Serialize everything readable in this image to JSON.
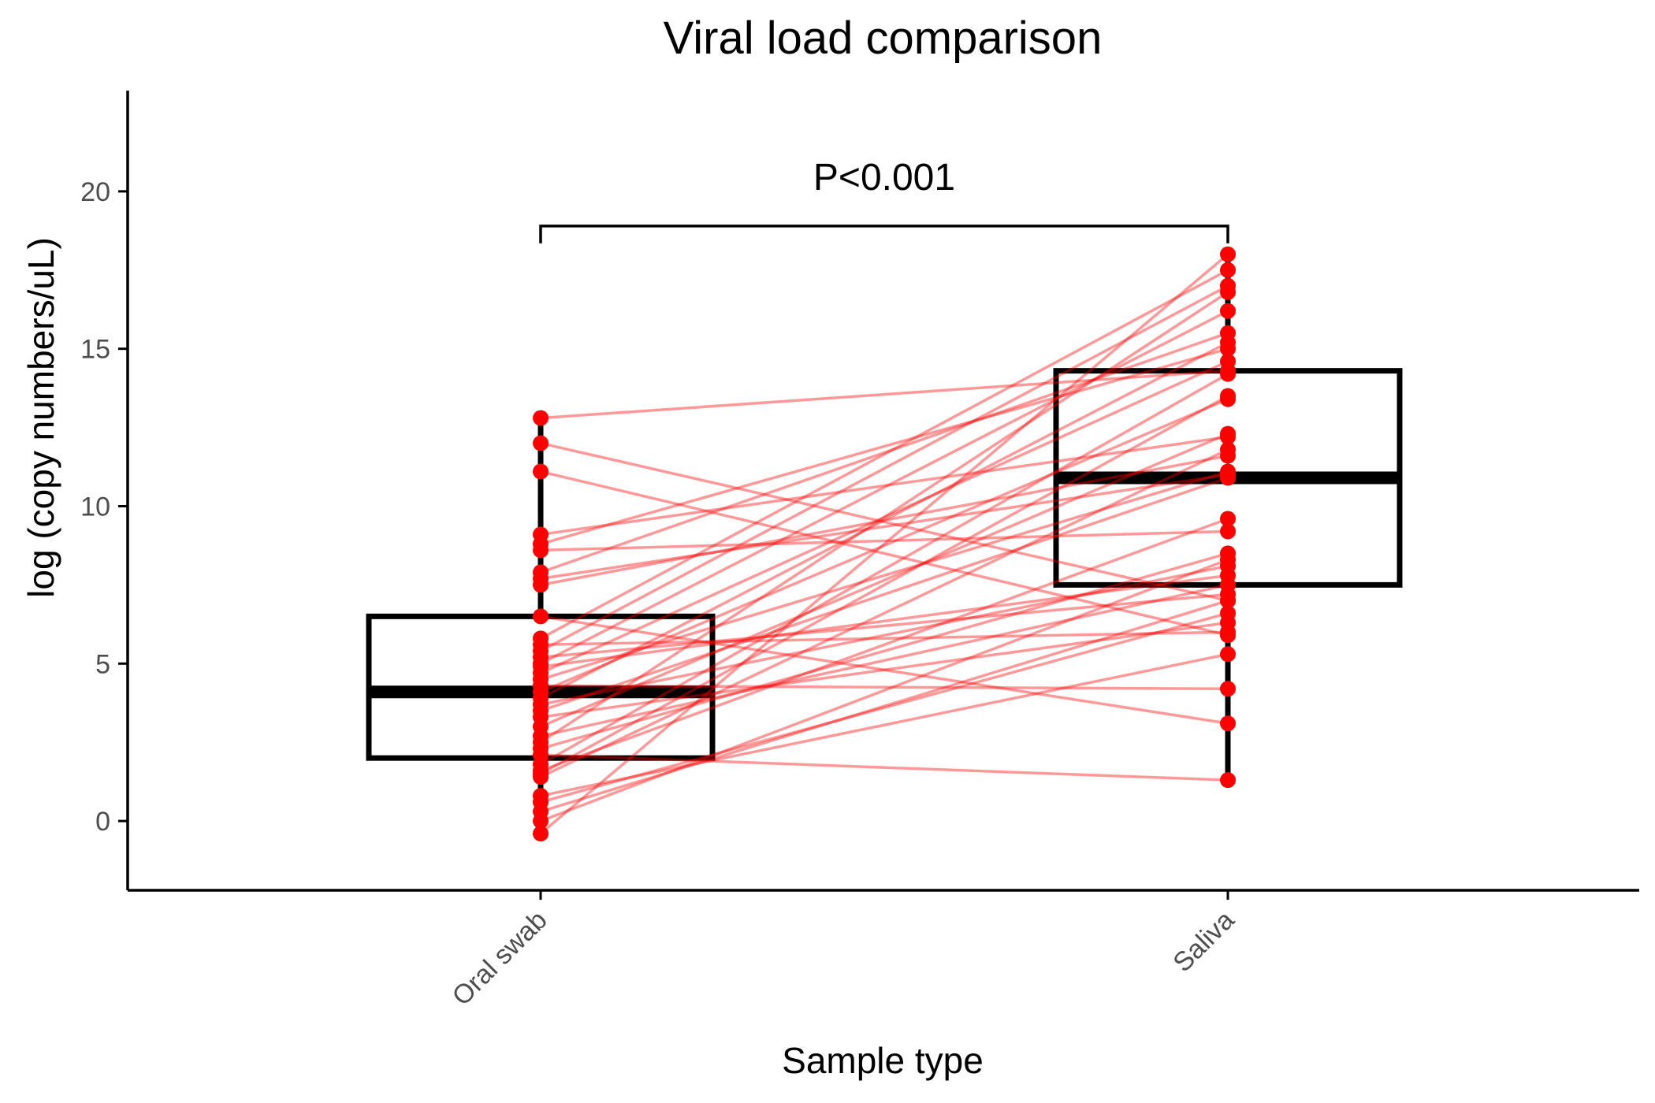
{
  "chart_data": {
    "type": "box",
    "title": "Viral load comparison",
    "xlabel": "Sample type",
    "ylabel": "log (copy numbers/uL)",
    "categories": [
      "Oral swab",
      "Saliva"
    ],
    "ylim": [
      -2.2,
      23.2
    ],
    "yticks": [
      0,
      5,
      10,
      15,
      20
    ],
    "grid": false,
    "legend": "none",
    "boxes": [
      {
        "category": "Oral swab",
        "q1": 2.0,
        "median": 4.1,
        "q3": 6.5,
        "whisker_low": -0.4,
        "whisker_high": 12.8
      },
      {
        "category": "Saliva",
        "q1": 7.5,
        "median": 10.9,
        "q3": 14.3,
        "whisker_low": 1.3,
        "whisker_high": 18.0
      }
    ],
    "pairs": [
      [
        12.8,
        14.3
      ],
      [
        12.0,
        7.0
      ],
      [
        11.1,
        5.9
      ],
      [
        9.1,
        12.2
      ],
      [
        8.8,
        15.0
      ],
      [
        8.6,
        9.2
      ],
      [
        7.9,
        15.5
      ],
      [
        7.7,
        11.0
      ],
      [
        7.5,
        11.6
      ],
      [
        6.5,
        3.1
      ],
      [
        5.8,
        17.5
      ],
      [
        5.6,
        6.0
      ],
      [
        5.4,
        17.0
      ],
      [
        5.2,
        7.2
      ],
      [
        5.0,
        16.2
      ],
      [
        4.9,
        7.8
      ],
      [
        4.7,
        14.6
      ],
      [
        4.5,
        11.1
      ],
      [
        4.3,
        4.2
      ],
      [
        4.1,
        13.4
      ],
      [
        3.9,
        15.2
      ],
      [
        3.7,
        8.1
      ],
      [
        3.5,
        10.9
      ],
      [
        3.3,
        6.3
      ],
      [
        3.0,
        12.3
      ],
      [
        2.7,
        7.5
      ],
      [
        2.5,
        16.8
      ],
      [
        2.3,
        8.5
      ],
      [
        2.1,
        1.3
      ],
      [
        1.8,
        14.2
      ],
      [
        1.6,
        9.6
      ],
      [
        1.4,
        11.8
      ],
      [
        0.8,
        5.3
      ],
      [
        0.6,
        6.6
      ],
      [
        0.3,
        7.0
      ],
      [
        0.0,
        8.3
      ],
      [
        -0.4,
        18.0
      ],
      [
        1.5,
        13.5
      ]
    ],
    "significance": {
      "label": "P<0.001",
      "y": 18.9
    }
  },
  "colors": {
    "points": "#ff0000",
    "lines": "#ff0000",
    "box": "#000000",
    "axis": "#000000",
    "tick_text": "#4d4d4d"
  }
}
